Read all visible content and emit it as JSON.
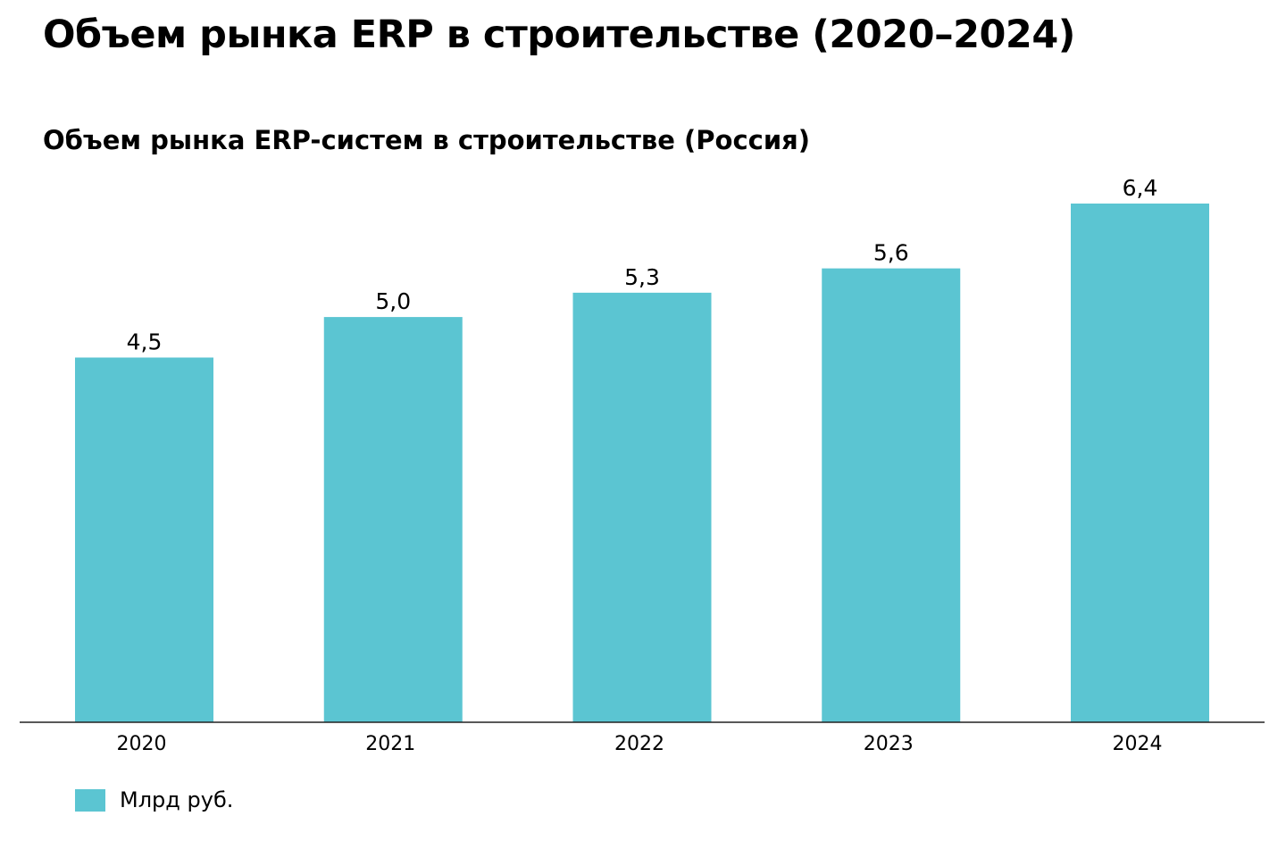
{
  "page": {
    "title": "Объем рынка ERP в строительстве (2020–2024)"
  },
  "chart_data": {
    "type": "bar",
    "title": "Объем рынка ERP-систем в строительстве (Россия)",
    "categories": [
      "2020",
      "2021",
      "2022",
      "2023",
      "2024"
    ],
    "series": [
      {
        "name": "Млрд руб.",
        "values": [
          4.5,
          5.0,
          5.3,
          5.6,
          6.4
        ],
        "labels": [
          "4,5",
          "5,0",
          "5,3",
          "5,6",
          "6,4"
        ],
        "color": "#5bc5d2"
      }
    ],
    "ylim": [
      0,
      6.4
    ],
    "grid": false,
    "legend": "bottom-left"
  }
}
